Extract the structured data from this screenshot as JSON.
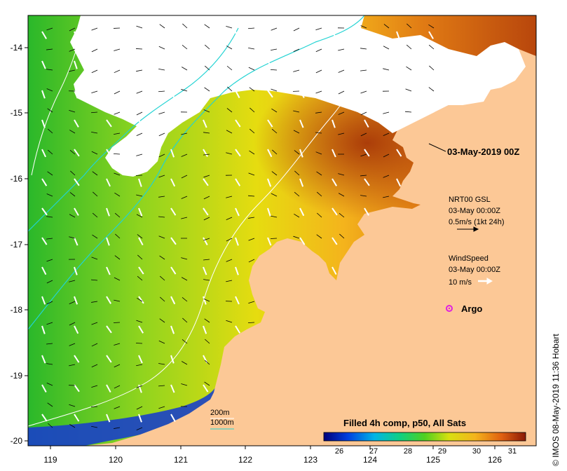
{
  "map": {
    "axes": {
      "lon_ticks": [
        "119",
        "120",
        "121",
        "122",
        "123",
        "124",
        "125",
        "126"
      ],
      "lat_ticks": [
        "-14",
        "-15",
        "-16",
        "-17",
        "-18",
        "-19",
        "-20"
      ]
    },
    "date_label": "03-May-2019 00Z",
    "current_legend": {
      "line1": "NRT00 GSL",
      "line2": "03-May 00:00Z",
      "line3": "0.5m/s (1kt 24h)"
    },
    "wind_legend": {
      "line1": "WindSpeed",
      "line2": "03-May 00:00Z",
      "line3": "10 m/s"
    },
    "argo_label": "Argo",
    "depth_legend": {
      "d200": "200m",
      "d1000": "1000m"
    },
    "colorbar": {
      "title": "Filled 4h comp, p50, All Sats",
      "ticks": [
        "26",
        "27",
        "28",
        "29",
        "30",
        "31"
      ]
    },
    "credit": "© IMOS 08-May-2019 11:36 Hobart",
    "colors": {
      "land": "#fcc896",
      "cloud": "#ffffff",
      "isobath_200": "#ffffff",
      "isobath_1000": "#22d3d3",
      "argo": "#e020e0"
    }
  }
}
